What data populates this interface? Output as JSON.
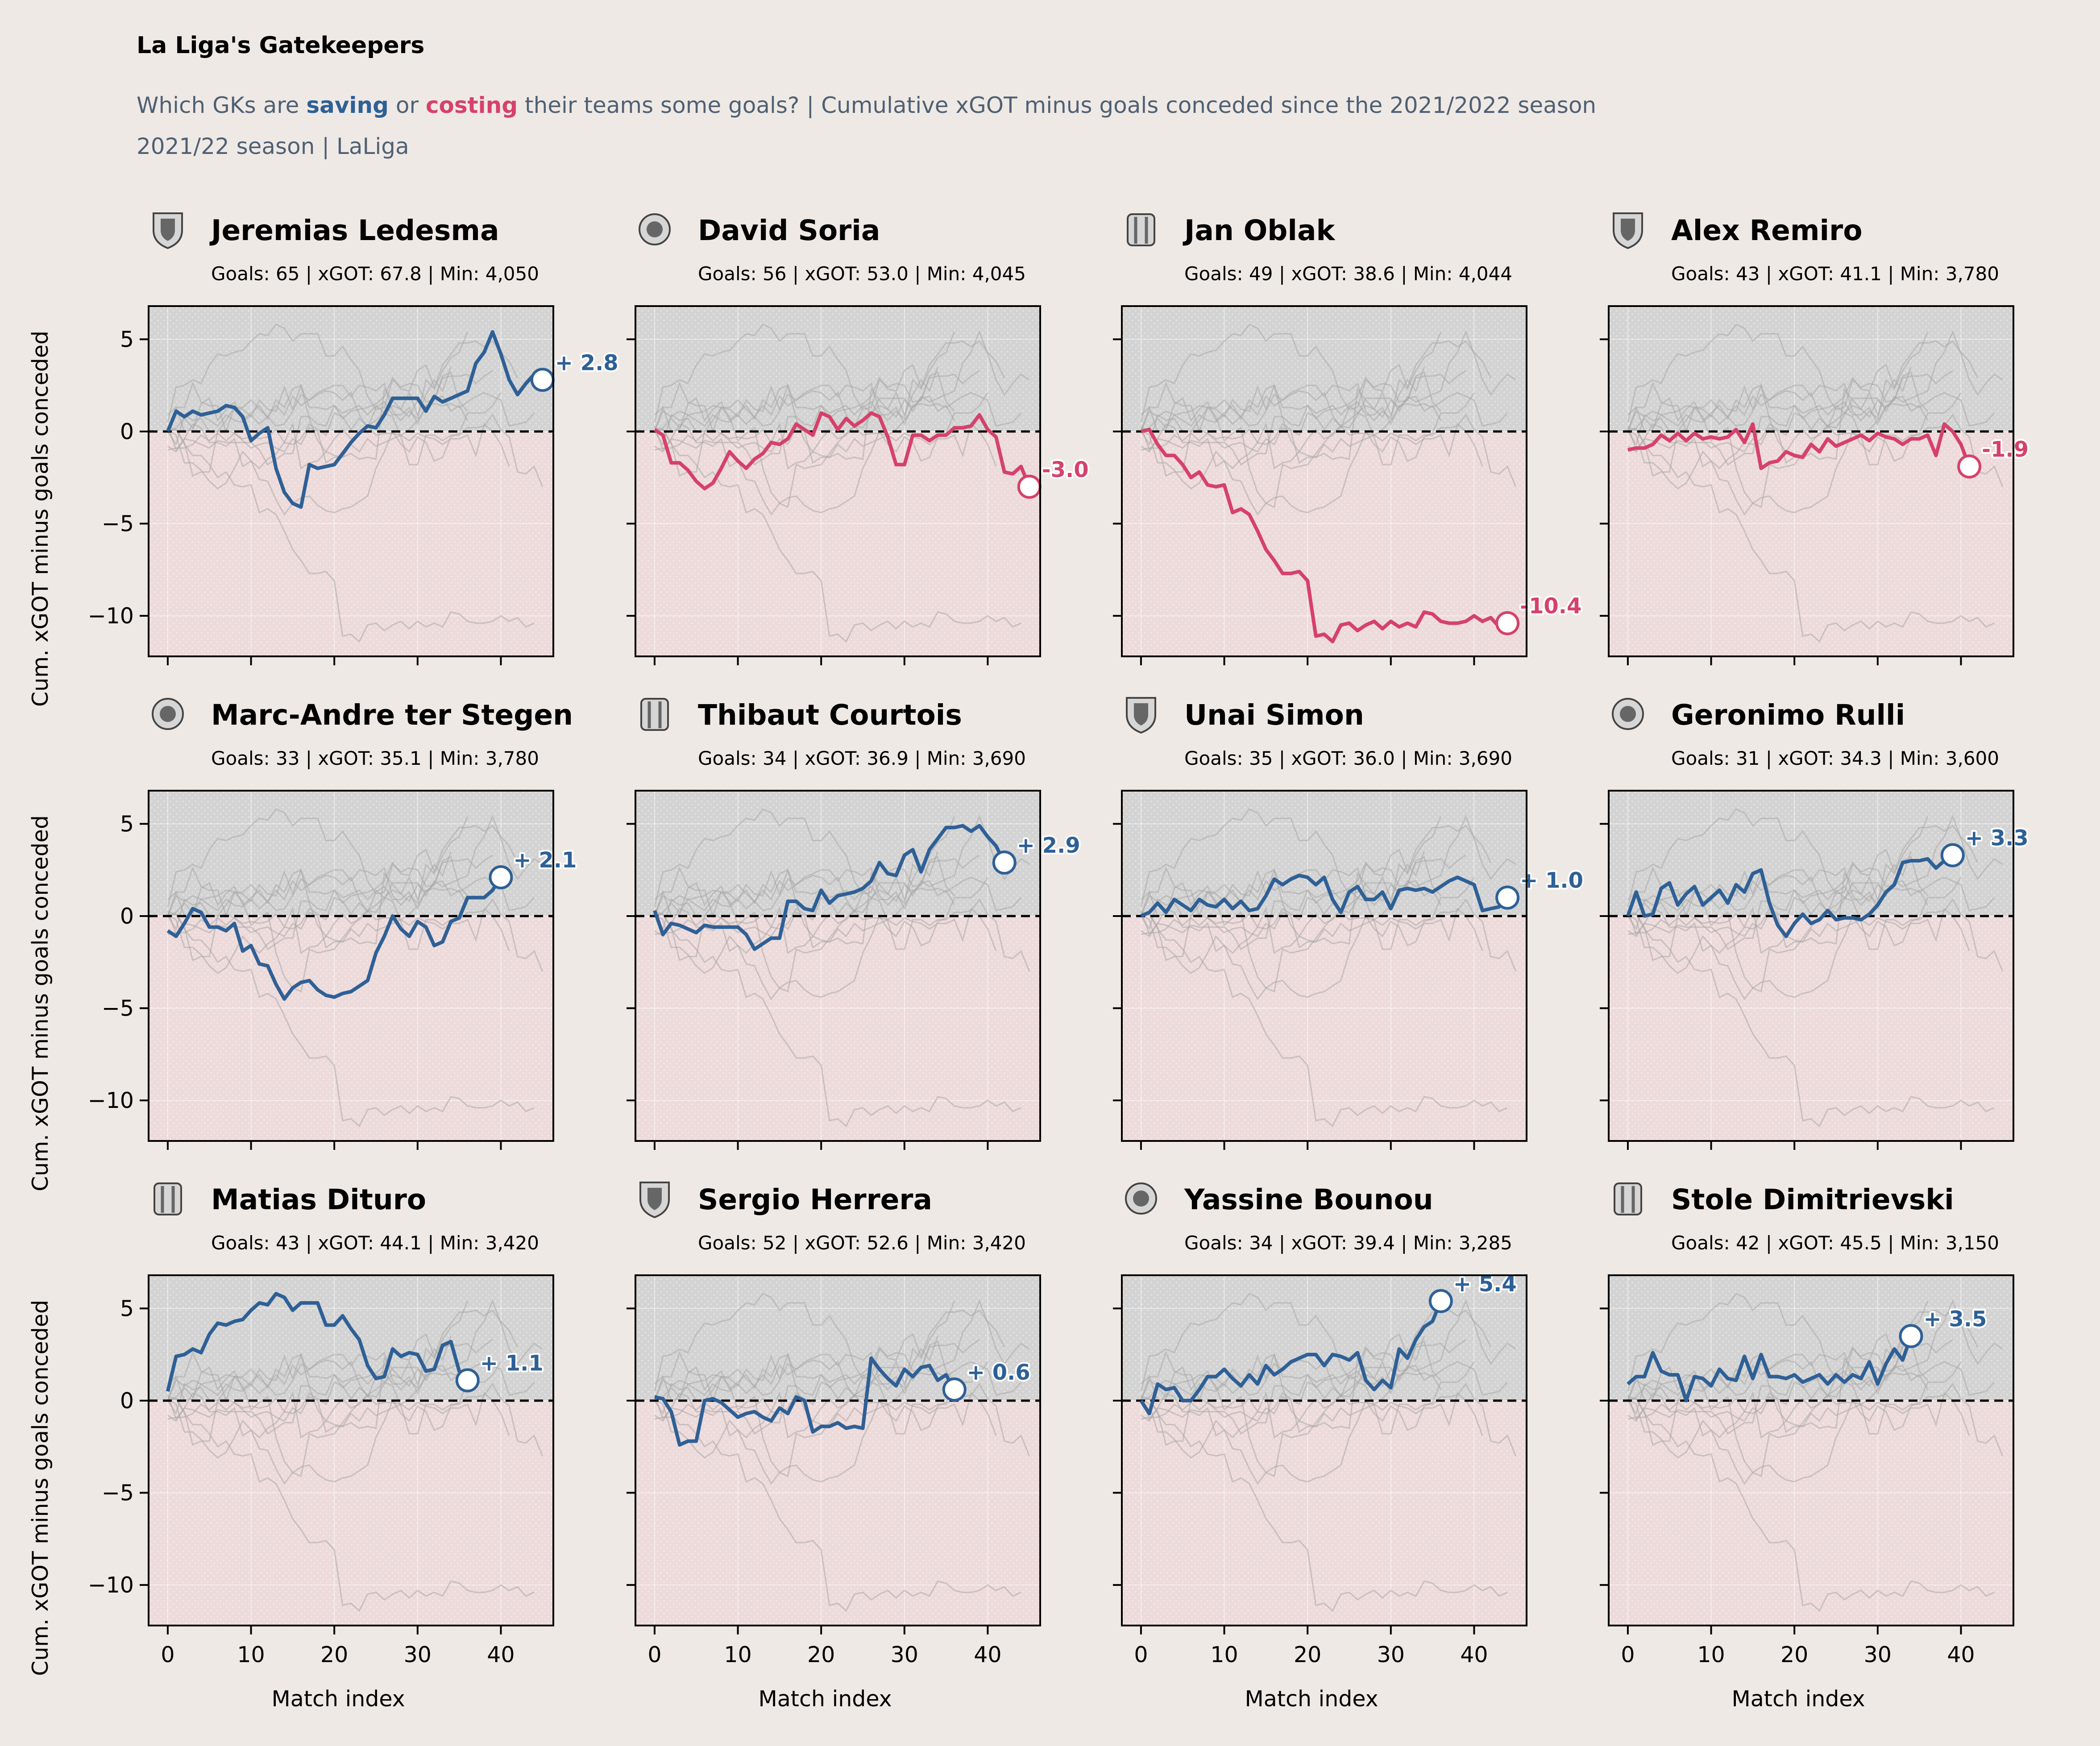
{
  "title": "La Liga's Gatekeepers",
  "subtitle": {
    "part1": "Which GKs are ",
    "saving": "saving",
    "part2": " or ",
    "costing": "costing",
    "part3": " their teams some goals? | Cumulative xGOT minus goals conceded since the 2021/2022 season",
    "line2": "2021/22 season | LaLiga"
  },
  "colors": {
    "saving": "#2e6096",
    "costing": "#d6416b",
    "background": "#efe9e5",
    "ghost": "#a8a8a8"
  },
  "axes": {
    "ylabel": "Cum. xGOT minus goals conceded",
    "xlabel": "Match index",
    "ylim": [
      -12.2,
      6.8
    ],
    "xlim": [
      -2.3,
      46.3
    ],
    "yticks": [
      5,
      0,
      -5,
      -10
    ],
    "xticks": [
      0,
      10,
      20,
      30,
      40
    ],
    "zero_line": "dashed"
  },
  "chart_data": {
    "type": "line",
    "series": [
      {
        "name": "Jeremias Ledesma",
        "stats": "Goals: 65 | xGOT: 67.8 | Min: 4,050",
        "crest_icon": "cadiz-crest-icon",
        "final_label": "+ 2.8",
        "final": 2.8,
        "values": [
          0,
          1.1,
          0.8,
          1.1,
          0.9,
          1.0,
          1.1,
          1.4,
          1.3,
          0.8,
          -0.5,
          -0.1,
          0.2,
          -2.0,
          -3.3,
          -3.9,
          -4.1,
          -1.8,
          -2.0,
          -1.9,
          -1.8,
          -1.2,
          -0.6,
          -0.1,
          0.3,
          0.2,
          0.9,
          1.8,
          1.8,
          1.8,
          1.8,
          1.1,
          1.9,
          1.6,
          1.8,
          2.0,
          2.2,
          3.7,
          4.3,
          5.4,
          4.2,
          2.8,
          2.0,
          2.6,
          3.1,
          2.8
        ]
      },
      {
        "name": "David Soria",
        "stats": "Goals: 56 | xGOT: 53.0 | Min: 4,045",
        "crest_icon": "getafe-crest-icon",
        "final_label": "-3.0",
        "final": -3.0,
        "values": [
          0.1,
          -0.2,
          -1.7,
          -1.7,
          -2.1,
          -2.7,
          -3.1,
          -2.8,
          -2.0,
          -1.1,
          -1.6,
          -2.0,
          -1.5,
          -1.2,
          -0.6,
          -0.7,
          -0.4,
          0.4,
          0.1,
          -0.2,
          1.0,
          0.8,
          0.1,
          0.7,
          0.3,
          0.6,
          1.0,
          0.8,
          -0.3,
          -1.8,
          -1.8,
          -0.2,
          -0.2,
          -0.5,
          -0.2,
          -0.2,
          0.2,
          0.2,
          0.3,
          0.9,
          0.1,
          -0.3,
          -2.2,
          -2.3,
          -1.9,
          -3.0
        ]
      },
      {
        "name": "Jan Oblak",
        "stats": "Goals: 49 | xGOT: 38.6 | Min: 4,044",
        "crest_icon": "atletico-crest-icon",
        "final_label": "-10.4",
        "final": -10.4,
        "values": [
          0,
          0.1,
          -0.7,
          -1.3,
          -1.3,
          -1.8,
          -2.5,
          -2.2,
          -2.9,
          -3.0,
          -2.9,
          -4.4,
          -4.2,
          -4.5,
          -5.4,
          -6.4,
          -7.0,
          -7.7,
          -7.7,
          -7.6,
          -8.1,
          -11.1,
          -11.0,
          -11.4,
          -10.5,
          -10.4,
          -10.8,
          -10.5,
          -10.3,
          -10.7,
          -10.3,
          -10.6,
          -10.4,
          -10.6,
          -9.8,
          -9.9,
          -10.3,
          -10.4,
          -10.4,
          -10.3,
          -10.0,
          -10.3,
          -10.1,
          -10.6,
          -10.4
        ]
      },
      {
        "name": "Alex Remiro",
        "stats": "Goals: 43 | xGOT: 41.1 | Min: 3,780",
        "crest_icon": "real-sociedad-crest-icon",
        "final_label": "-1.9",
        "final": -1.9,
        "values": [
          -1.0,
          -0.9,
          -0.9,
          -0.7,
          -0.2,
          -0.5,
          -0.1,
          -0.5,
          -0.1,
          -0.4,
          -0.3,
          -0.4,
          -0.3,
          0.1,
          -0.6,
          0.4,
          -2.0,
          -1.7,
          -1.6,
          -1.1,
          -1.3,
          -1.4,
          -0.7,
          -1.1,
          -0.4,
          -0.8,
          -0.6,
          -0.4,
          -0.2,
          -0.5,
          -0.1,
          -0.3,
          -0.4,
          -0.7,
          -0.4,
          -0.4,
          -0.2,
          -1.3,
          0.4,
          0,
          -0.7,
          -1.9
        ]
      },
      {
        "name": "Marc-Andre ter Stegen",
        "stats": "Goals: 33 | xGOT: 35.1 | Min: 3,780",
        "crest_icon": "barcelona-crest-icon",
        "final_label": "+ 2.1",
        "final": 2.1,
        "values": [
          -0.8,
          -1.1,
          -0.4,
          0.4,
          0.2,
          -0.6,
          -0.6,
          -0.8,
          -0.4,
          -1.9,
          -1.6,
          -2.6,
          -2.7,
          -3.7,
          -4.5,
          -3.9,
          -3.6,
          -3.5,
          -4.0,
          -4.3,
          -4.4,
          -4.2,
          -4.1,
          -3.8,
          -3.5,
          -2.0,
          -1.1,
          0.0,
          -0.7,
          -1.1,
          -0.3,
          -0.6,
          -1.6,
          -1.4,
          -0.3,
          -0.1,
          1.0,
          1.0,
          1.0,
          1.4,
          2.1
        ]
      },
      {
        "name": "Thibaut Courtois",
        "stats": "Goals: 34 | xGOT: 36.9 | Min: 3,690",
        "crest_icon": "real-madrid-crest-icon",
        "final_label": "+ 2.9",
        "final": 2.9,
        "values": [
          0.3,
          -1.0,
          -0.4,
          -0.5,
          -0.7,
          -0.9,
          -0.5,
          -0.6,
          -0.6,
          -0.6,
          -0.6,
          -1.0,
          -1.8,
          -1.5,
          -1.2,
          -1.2,
          0.8,
          0.8,
          0.4,
          0.3,
          1.4,
          0.7,
          1.1,
          1.2,
          1.3,
          1.5,
          1.9,
          2.9,
          2.3,
          2.2,
          3.3,
          3.6,
          2.4,
          3.6,
          4.2,
          4.8,
          4.8,
          4.9,
          4.6,
          4.9,
          4.3,
          3.8,
          2.9
        ]
      },
      {
        "name": "Unai Simon",
        "stats": "Goals: 35 | xGOT: 36.0 | Min: 3,690",
        "crest_icon": "athletic-crest-icon",
        "final_label": "+ 1.0",
        "final": 1.0,
        "values": [
          0,
          0.2,
          0.7,
          0.2,
          0.9,
          0.6,
          0.3,
          0.9,
          0.6,
          0.5,
          0.9,
          0.4,
          0.8,
          0.3,
          0.4,
          1.1,
          2.0,
          1.7,
          2.0,
          2.2,
          2.1,
          1.7,
          2.1,
          0.9,
          0.2,
          1.3,
          1.6,
          0.9,
          0.9,
          1.3,
          0.4,
          1.4,
          1.5,
          1.4,
          1.5,
          1.3,
          1.6,
          1.9,
          2.1,
          1.9,
          1.7,
          0.3,
          0.4,
          0.5,
          1.0
        ]
      },
      {
        "name": "Geronimo Rulli",
        "stats": "Goals: 31 | xGOT: 34.3 | Min: 3,600",
        "crest_icon": "villarreal-crest-icon",
        "final_label": "+ 3.3",
        "final": 3.3,
        "values": [
          0,
          1.3,
          0.0,
          0.1,
          1.5,
          1.8,
          0.6,
          1.2,
          1.6,
          0.6,
          1.0,
          1.4,
          0.7,
          1.7,
          1.3,
          2.3,
          2.5,
          0.7,
          -0.5,
          -1.1,
          -0.4,
          0.1,
          -0.4,
          -0.2,
          0.3,
          -0.2,
          -0.1,
          -0.1,
          -0.2,
          0.1,
          0.6,
          1.3,
          1.7,
          2.9,
          3.0,
          3.0,
          3.1,
          2.6,
          3.0,
          3.3
        ]
      },
      {
        "name": "Matias Dituro",
        "stats": "Goals: 43 | xGOT: 44.1 | Min: 3,420",
        "crest_icon": "celta-crest-icon",
        "final_label": "+ 1.1",
        "final": 1.1,
        "values": [
          0.5,
          2.4,
          2.5,
          2.8,
          2.6,
          3.6,
          4.2,
          4.1,
          4.3,
          4.4,
          4.9,
          5.3,
          5.2,
          5.8,
          5.6,
          4.9,
          5.3,
          5.3,
          5.3,
          4.1,
          4.1,
          4.6,
          3.9,
          3.3,
          1.9,
          1.2,
          1.3,
          2.8,
          2.4,
          2.6,
          2.5,
          1.6,
          1.7,
          3.0,
          3.2,
          1.6,
          1.1
        ]
      },
      {
        "name": "Sergio Herrera",
        "stats": "Goals: 52 | xGOT: 52.6 | Min: 3,420",
        "crest_icon": "osasuna-crest-icon",
        "final_label": "+ 0.6",
        "final": 0.6,
        "values": [
          0.2,
          0.1,
          -0.6,
          -2.4,
          -2.2,
          -2.2,
          0.0,
          0.1,
          -0.1,
          -0.5,
          -0.9,
          -0.7,
          -0.6,
          -0.9,
          -1.1,
          -0.4,
          -0.7,
          0.2,
          0.0,
          -1.7,
          -1.4,
          -1.4,
          -1.2,
          -1.5,
          -1.4,
          -1.5,
          2.3,
          1.7,
          1.2,
          0.8,
          1.7,
          1.3,
          1.8,
          1.9,
          1.1,
          1.4,
          0.6
        ]
      },
      {
        "name": "Yassine Bounou",
        "stats": "Goals: 34 | xGOT: 39.4 | Min: 3,285",
        "crest_icon": "sevilla-crest-icon",
        "final_label": "+ 5.4",
        "final": 5.4,
        "values": [
          0,
          -0.7,
          0.9,
          0.6,
          0.7,
          0.0,
          0.0,
          0.6,
          1.3,
          1.3,
          1.7,
          1.2,
          0.8,
          1.4,
          0.9,
          1.9,
          1.4,
          1.7,
          2.1,
          2.3,
          2.5,
          2.5,
          1.9,
          2.5,
          2.4,
          2.2,
          2.6,
          1.1,
          0.6,
          1.1,
          0.7,
          2.8,
          2.3,
          3.3,
          4.0,
          4.3,
          5.4
        ]
      },
      {
        "name": "Stole Dimitrievski",
        "stats": "Goals: 42 | xGOT: 45.5 | Min: 3,150",
        "crest_icon": "rayo-crest-icon",
        "final_label": "+ 3.5",
        "final": 3.5,
        "values": [
          0.9,
          1.3,
          1.3,
          2.6,
          1.6,
          1.4,
          1.4,
          0.0,
          1.3,
          1.2,
          0.8,
          1.7,
          1.2,
          1.1,
          2.4,
          1.2,
          2.5,
          1.3,
          1.3,
          1.2,
          1.4,
          1.0,
          1.2,
          1.4,
          0.9,
          1.4,
          1.0,
          1.4,
          1.2,
          2.1,
          0.9,
          2.0,
          2.8,
          2.2,
          3.5
        ]
      }
    ]
  }
}
